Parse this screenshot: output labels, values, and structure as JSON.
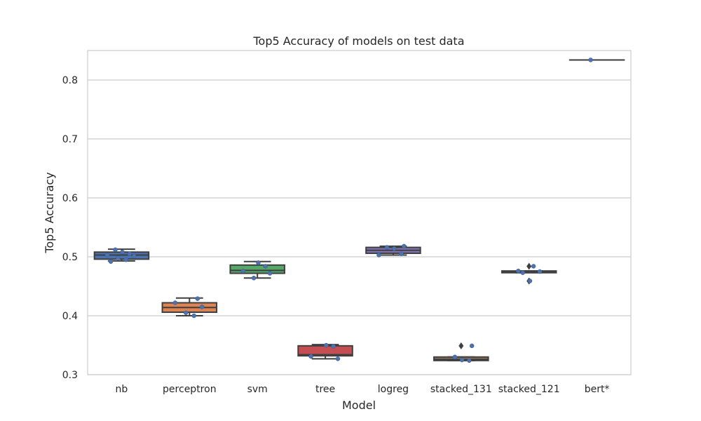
{
  "chart_data": {
    "type": "box",
    "title": "Top5 Accuracy of models on test data",
    "xlabel": "Model",
    "ylabel": "Top5 Accuracy",
    "ylim": [
      0.3,
      0.85
    ],
    "yticks": [
      0.3,
      0.4,
      0.5,
      0.6,
      0.7,
      0.8
    ],
    "ytick_labels": [
      "0.3",
      "0.4",
      "0.5",
      "0.6",
      "0.7",
      "0.8"
    ],
    "grid": true,
    "legend": "none",
    "categories": [
      "nb",
      "perceptron",
      "svm",
      "tree",
      "logreg",
      "stacked_131",
      "stacked_121",
      "bert*"
    ],
    "boxes": [
      {
        "category": "nb",
        "color": "#4c72b0",
        "whisker_low": 0.493,
        "q1": 0.496,
        "median": 0.503,
        "q3": 0.508,
        "whisker_high": 0.513,
        "outliers": [],
        "points": [
          0.492,
          0.495,
          0.498,
          0.501,
          0.503,
          0.505,
          0.508,
          0.512
        ]
      },
      {
        "category": "perceptron",
        "color": "#dd8452",
        "whisker_low": 0.4,
        "q1": 0.406,
        "median": 0.414,
        "q3": 0.422,
        "whisker_high": 0.43,
        "outliers": [],
        "points": [
          0.4,
          0.405,
          0.415,
          0.422,
          0.429
        ]
      },
      {
        "category": "svm",
        "color": "#55a868",
        "whisker_low": 0.464,
        "q1": 0.472,
        "median": 0.477,
        "q3": 0.486,
        "whisker_high": 0.492,
        "outliers": [],
        "points": [
          0.464,
          0.472,
          0.476,
          0.484,
          0.49
        ]
      },
      {
        "category": "tree",
        "color": "#c44e52",
        "whisker_low": 0.327,
        "q1": 0.332,
        "median": 0.334,
        "q3": 0.349,
        "whisker_high": 0.351,
        "outliers": [],
        "points": [
          0.327,
          0.331,
          0.348,
          0.35
        ]
      },
      {
        "category": "logreg",
        "color": "#8172b3",
        "whisker_low": 0.503,
        "q1": 0.506,
        "median": 0.511,
        "q3": 0.516,
        "whisker_high": 0.518,
        "outliers": [],
        "points": [
          0.503,
          0.505,
          0.514,
          0.516,
          0.518
        ]
      },
      {
        "category": "stacked_131",
        "color": "#937860",
        "whisker_low": 0.324,
        "q1": 0.324,
        "median": 0.326,
        "q3": 0.33,
        "whisker_high": 0.33,
        "outliers": [
          0.349
        ],
        "points": [
          0.324,
          0.325,
          0.33,
          0.349
        ]
      },
      {
        "category": "stacked_121",
        "color": "#da8bc3",
        "whisker_low": 0.473,
        "q1": 0.473,
        "median": 0.475,
        "q3": 0.476,
        "whisker_high": 0.476,
        "outliers": [
          0.459,
          0.484
        ],
        "points": [
          0.459,
          0.473,
          0.475,
          0.476,
          0.484
        ]
      },
      {
        "category": "bert*",
        "color": "#8c8c8c",
        "whisker_low": 0.834,
        "q1": 0.834,
        "median": 0.834,
        "q3": 0.834,
        "whisker_high": 0.834,
        "outliers": [],
        "points": [
          0.834
        ]
      }
    ],
    "point_color": "#4c72b0",
    "line_color": "#3f3f3f",
    "grid_color": "#cccccc",
    "frame_color": "#cccccc"
  }
}
